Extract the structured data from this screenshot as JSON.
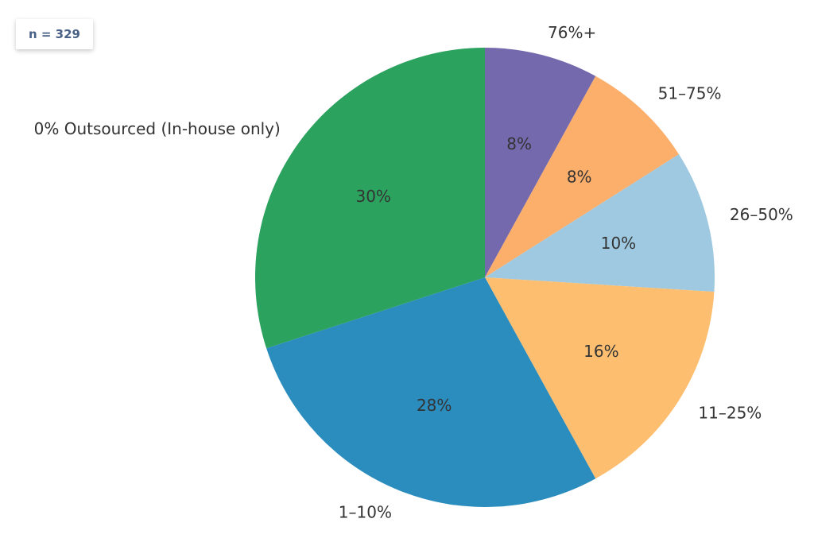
{
  "sample_note": "n = 329",
  "chart_data": {
    "type": "pie",
    "title": "",
    "slices": [
      {
        "label": "76%+",
        "value": 8,
        "display": "8%",
        "color": "#7569ae"
      },
      {
        "label": "51–75%",
        "value": 8,
        "display": "8%",
        "color": "#fcae6b"
      },
      {
        "label": "26–50%",
        "value": 10,
        "display": "10%",
        "color": "#9ec9e0"
      },
      {
        "label": "11–25%",
        "value": 16,
        "display": "16%",
        "color": "#fdbe70"
      },
      {
        "label": "1–10%",
        "value": 28,
        "display": "28%",
        "color": "#2b8cbe"
      },
      {
        "label": "0% Outsourced (In-house only)",
        "value": 30,
        "display": "30%",
        "color": "#2ca25f"
      }
    ],
    "start_angle": "12 o'clock",
    "direction": "clockwise",
    "legend": "none"
  }
}
